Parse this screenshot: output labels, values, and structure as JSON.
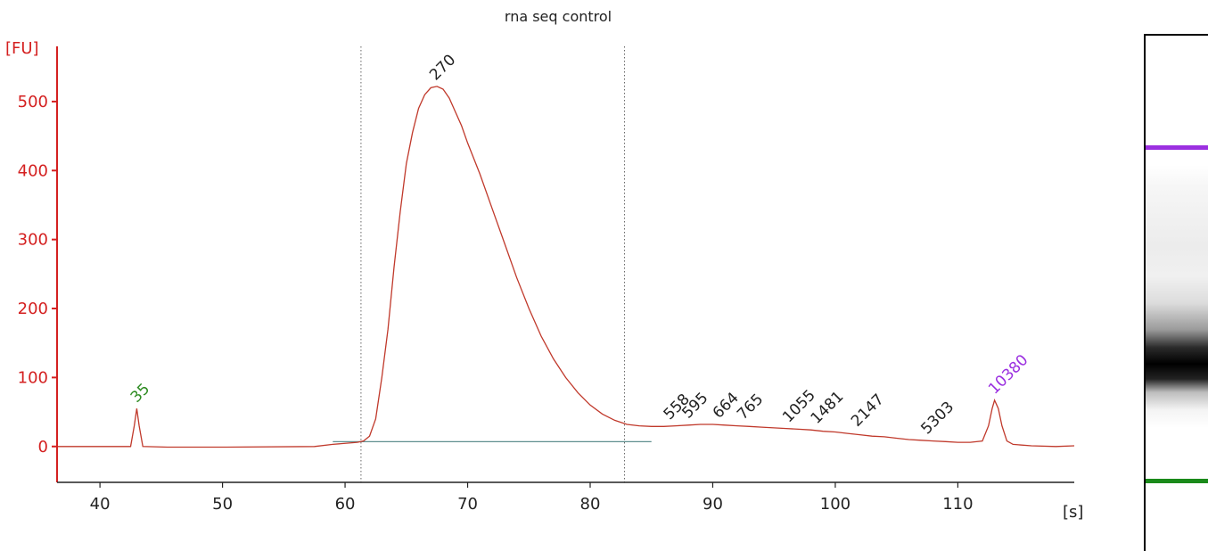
{
  "chart_data": {
    "type": "line",
    "title": "rna seq control",
    "ylabel": "[FU]",
    "xlabel": "[s]",
    "xlim": [
      36.5,
      119.5
    ],
    "ylim": [
      -52,
      580
    ],
    "xticks": [
      40,
      50,
      60,
      70,
      80,
      90,
      100,
      110
    ],
    "yticks": [
      0,
      100,
      200,
      300,
      400,
      500
    ],
    "grid": false,
    "colors": {
      "trace": "#c0392b",
      "axis": "#d42020",
      "baseline": "#5f8f8f",
      "lower_marker": "#2e8b22",
      "upper_marker": "#9b30e0",
      "label": "#222222"
    },
    "series": [
      {
        "x": [
          36.5,
          40,
          42.5,
          42.8,
          43,
          43.2,
          43.5,
          45.5,
          50,
          57.5,
          59,
          61,
          61.5,
          62,
          62.5,
          63,
          63.5,
          64,
          64.5,
          65,
          65.5,
          66,
          66.5,
          67,
          67.5,
          68,
          68.5,
          69,
          69.5,
          70,
          71,
          72,
          73,
          74,
          75,
          76,
          77,
          78,
          79,
          80,
          81,
          82,
          83,
          84,
          85,
          86,
          87,
          88,
          89,
          90,
          91,
          92,
          93,
          94,
          95,
          96,
          97,
          98,
          99,
          100,
          101,
          102,
          103,
          104,
          105,
          106,
          107,
          108,
          109,
          110,
          111,
          112,
          112.5,
          112.8,
          113,
          113.3,
          113.6,
          114,
          114.5,
          116,
          118,
          119.5
        ],
        "y": [
          0,
          0,
          0,
          30,
          55,
          30,
          0,
          -1,
          -1,
          0,
          3,
          6,
          8,
          15,
          40,
          100,
          170,
          260,
          340,
          410,
          455,
          490,
          510,
          520,
          522,
          518,
          505,
          485,
          465,
          440,
          395,
          345,
          295,
          245,
          200,
          160,
          127,
          100,
          78,
          60,
          47,
          38,
          32,
          30,
          29,
          29,
          30,
          31,
          32,
          32,
          31,
          30,
          29,
          28,
          27,
          26,
          25,
          24,
          22,
          21,
          19,
          17,
          15,
          14,
          12,
          10,
          9,
          8,
          7,
          6,
          6,
          8,
          30,
          55,
          67,
          55,
          30,
          8,
          3,
          1,
          0,
          1
        ]
      }
    ],
    "peaks": [
      {
        "x": 43.0,
        "y": 55,
        "label": "35",
        "color": "#2e8b22"
      },
      {
        "x": 67.4,
        "y": 522,
        "label": "270",
        "color": "#222222"
      },
      {
        "x": 86.5,
        "y": 30,
        "label": "558",
        "color": "#222222"
      },
      {
        "x": 88.0,
        "y": 32,
        "label": "595",
        "color": "#222222"
      },
      {
        "x": 90.5,
        "y": 32,
        "label": "664",
        "color": "#222222"
      },
      {
        "x": 92.5,
        "y": 30,
        "label": "765",
        "color": "#222222"
      },
      {
        "x": 96.2,
        "y": 26,
        "label": "1055",
        "color": "#222222"
      },
      {
        "x": 98.5,
        "y": 24,
        "label": "1481",
        "color": "#222222"
      },
      {
        "x": 101.8,
        "y": 20,
        "label": "2147",
        "color": "#222222"
      },
      {
        "x": 107.5,
        "y": 9,
        "label": "5303",
        "color": "#222222"
      },
      {
        "x": 113.0,
        "y": 67,
        "label": "10380",
        "color": "#9b30e0"
      }
    ],
    "region_markers": [
      61.3,
      82.8
    ],
    "baseline": {
      "x": [
        59,
        85
      ],
      "y": 7
    }
  }
}
